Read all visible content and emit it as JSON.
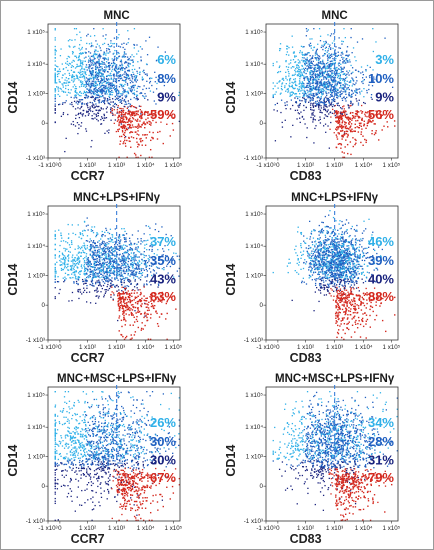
{
  "colors": {
    "light_blue": "#2fb0e8",
    "mid_blue": "#1f5fc0",
    "dark_navy": "#1a237e",
    "red": "#d4281e",
    "gate_line": "#3a7fd8",
    "frame": "#333333"
  },
  "x_tick_labels": [
    "-1 x10³",
    "0",
    "1 x10²",
    "1 x10³",
    "1 x10⁴",
    "1 x10⁵"
  ],
  "y_tick_labels": [
    "-1 x10³",
    "0",
    "1 x10³",
    "1 x10⁴",
    "1 x10⁵"
  ],
  "chart_data": [
    {
      "type": "scatter",
      "title": "MNC",
      "xlabel": "CCR7",
      "ylabel": "CD14",
      "populations": [
        {
          "color": "light_blue",
          "percent": "6%"
        },
        {
          "color": "mid_blue",
          "percent": "8%"
        },
        {
          "color": "dark_navy",
          "percent": "9%"
        },
        {
          "color": "red",
          "percent": "59%"
        }
      ]
    },
    {
      "type": "scatter",
      "title": "MNC",
      "xlabel": "CD83",
      "ylabel": "CD14",
      "populations": [
        {
          "color": "light_blue",
          "percent": "3%"
        },
        {
          "color": "mid_blue",
          "percent": "10%"
        },
        {
          "color": "dark_navy",
          "percent": "9%"
        },
        {
          "color": "red",
          "percent": "56%"
        }
      ]
    },
    {
      "type": "scatter",
      "title": "MNC+LPS+IFNγ",
      "xlabel": "CCR7",
      "ylabel": "CD14",
      "populations": [
        {
          "color": "light_blue",
          "percent": "37%"
        },
        {
          "color": "mid_blue",
          "percent": "35%"
        },
        {
          "color": "dark_navy",
          "percent": "43%"
        },
        {
          "color": "red",
          "percent": "83%"
        }
      ]
    },
    {
      "type": "scatter",
      "title": "MNC+LPS+IFNγ",
      "xlabel": "CD83",
      "ylabel": "CD14",
      "populations": [
        {
          "color": "light_blue",
          "percent": "46%"
        },
        {
          "color": "mid_blue",
          "percent": "39%"
        },
        {
          "color": "dark_navy",
          "percent": "40%"
        },
        {
          "color": "red",
          "percent": "88%"
        }
      ]
    },
    {
      "type": "scatter",
      "title": "MNC+MSC+LPS+IFNγ",
      "xlabel": "CCR7",
      "ylabel": "CD14",
      "populations": [
        {
          "color": "light_blue",
          "percent": "26%"
        },
        {
          "color": "mid_blue",
          "percent": "30%"
        },
        {
          "color": "dark_navy",
          "percent": "30%"
        },
        {
          "color": "red",
          "percent": "67%"
        }
      ]
    },
    {
      "type": "scatter",
      "title": "MNC+MSC+LPS+IFNγ",
      "xlabel": "CD83",
      "ylabel": "CD14",
      "populations": [
        {
          "color": "light_blue",
          "percent": "34%"
        },
        {
          "color": "mid_blue",
          "percent": "28%"
        },
        {
          "color": "dark_navy",
          "percent": "31%"
        },
        {
          "color": "red",
          "percent": "79%"
        }
      ]
    }
  ]
}
